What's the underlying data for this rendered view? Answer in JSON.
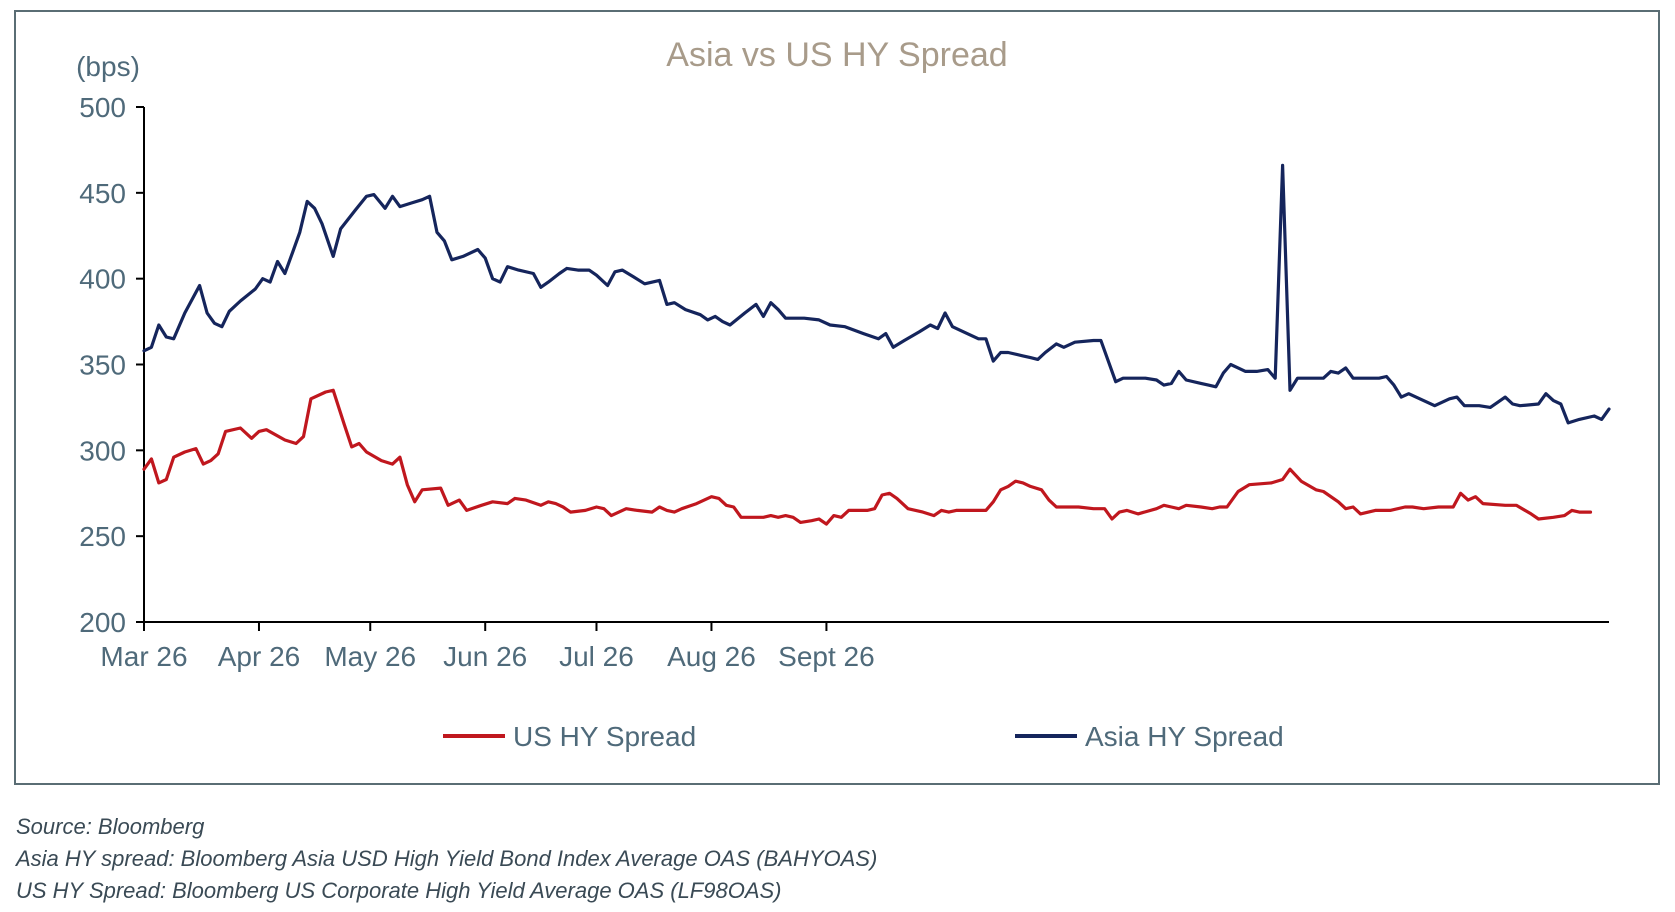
{
  "chart_data": {
    "type": "line",
    "title": "Asia vs US HY Spread",
    "ylabel": "(bps)",
    "ylim": [
      200,
      500
    ],
    "yticks": [
      "200",
      "250",
      "300",
      "350",
      "400",
      "450",
      "500"
    ],
    "xticks": [
      "Mar 26",
      "Apr 26",
      "May 26",
      "Jun 26",
      "Jul 26",
      "Aug 26",
      "Sept 26"
    ],
    "legend_position": "bottom",
    "grid": false,
    "colors": {
      "us": "#c0171e",
      "asia": "#15255c",
      "title": "#a89b8a",
      "axis": "#4f6a7a"
    },
    "series": [
      {
        "name": "US HY Spread",
        "key": "us",
        "points": [
          [
            0,
            289
          ],
          [
            2,
            295
          ],
          [
            4,
            281
          ],
          [
            6,
            283
          ],
          [
            8,
            296
          ],
          [
            11,
            299
          ],
          [
            14,
            301
          ],
          [
            16,
            292
          ],
          [
            18,
            294
          ],
          [
            20,
            298
          ],
          [
            22,
            311
          ],
          [
            26,
            313
          ],
          [
            29,
            307
          ],
          [
            31,
            311
          ],
          [
            33,
            312
          ],
          [
            38,
            306
          ],
          [
            41,
            304
          ],
          [
            43,
            308
          ],
          [
            45,
            330
          ],
          [
            49,
            334
          ],
          [
            51,
            335
          ],
          [
            54,
            315
          ],
          [
            56,
            302
          ],
          [
            58,
            304
          ],
          [
            60,
            299
          ],
          [
            64,
            294
          ],
          [
            67,
            292
          ],
          [
            69,
            296
          ],
          [
            71,
            280
          ],
          [
            73,
            270
          ],
          [
            75,
            277
          ],
          [
            80,
            278
          ],
          [
            82,
            268
          ],
          [
            85,
            271
          ],
          [
            87,
            265
          ],
          [
            91,
            268
          ],
          [
            94,
            270
          ],
          [
            98,
            269
          ],
          [
            100,
            272
          ],
          [
            103,
            271
          ],
          [
            107,
            268
          ],
          [
            109,
            270
          ],
          [
            111,
            269
          ],
          [
            113,
            267
          ],
          [
            115,
            264
          ],
          [
            119,
            265
          ],
          [
            122,
            267
          ],
          [
            124,
            266
          ],
          [
            126,
            262
          ],
          [
            130,
            266
          ],
          [
            133,
            265
          ],
          [
            137,
            264
          ],
          [
            139,
            267
          ],
          [
            141,
            265
          ],
          [
            143,
            264
          ],
          [
            145,
            266
          ],
          [
            149,
            269
          ],
          [
            153,
            273
          ],
          [
            155,
            272
          ],
          [
            157,
            268
          ],
          [
            159,
            267
          ],
          [
            161,
            261
          ],
          [
            167,
            261
          ],
          [
            169,
            262
          ],
          [
            171,
            261
          ],
          [
            173,
            262
          ],
          [
            175,
            261
          ],
          [
            177,
            258
          ],
          [
            180,
            259
          ],
          [
            182,
            260
          ],
          [
            184,
            257
          ],
          [
            186,
            262
          ],
          [
            188,
            261
          ],
          [
            190,
            265
          ],
          [
            195,
            265
          ],
          [
            197,
            266
          ],
          [
            199,
            274
          ],
          [
            201,
            275
          ],
          [
            203,
            272
          ],
          [
            206,
            266
          ],
          [
            210,
            264
          ],
          [
            213,
            262
          ],
          [
            215,
            265
          ],
          [
            217,
            264
          ],
          [
            219,
            265
          ],
          [
            224,
            265
          ],
          [
            227,
            265
          ],
          [
            229,
            270
          ],
          [
            231,
            277
          ],
          [
            233,
            279
          ],
          [
            235,
            282
          ],
          [
            237,
            281
          ],
          [
            239,
            279
          ],
          [
            242,
            277
          ],
          [
            244,
            271
          ],
          [
            246,
            267
          ],
          [
            252,
            267
          ],
          [
            256,
            266
          ],
          [
            259,
            266
          ],
          [
            261,
            260
          ],
          [
            263,
            264
          ],
          [
            265,
            265
          ],
          [
            268,
            263
          ],
          [
            273,
            266
          ],
          [
            275,
            268
          ],
          [
            277,
            267
          ],
          [
            279,
            266
          ],
          [
            281,
            268
          ],
          [
            285,
            267
          ],
          [
            288,
            266
          ],
          [
            290,
            267
          ],
          [
            292,
            267
          ],
          [
            295,
            276
          ],
          [
            298,
            280
          ],
          [
            304,
            281
          ],
          [
            307,
            283
          ],
          [
            309,
            289
          ],
          [
            312,
            282
          ],
          [
            316,
            277
          ],
          [
            318,
            276
          ],
          [
            322,
            270
          ],
          [
            324,
            266
          ],
          [
            326,
            267
          ],
          [
            328,
            263
          ],
          [
            332,
            265
          ],
          [
            336,
            265
          ],
          [
            340,
            267
          ],
          [
            342,
            267
          ],
          [
            345,
            266
          ],
          [
            349,
            267
          ],
          [
            353,
            267
          ],
          [
            355,
            275
          ],
          [
            357,
            271
          ],
          [
            359,
            273
          ],
          [
            361,
            269
          ],
          [
            367,
            268
          ],
          [
            370,
            268
          ],
          [
            374,
            263
          ],
          [
            376,
            260
          ],
          [
            380,
            261
          ],
          [
            383,
            262
          ],
          [
            385,
            265
          ],
          [
            387,
            264
          ],
          [
            390,
            264
          ]
        ]
      },
      {
        "name": "Asia HY Spread",
        "key": "asia",
        "points": [
          [
            0,
            358
          ],
          [
            2,
            360
          ],
          [
            4,
            373
          ],
          [
            6,
            366
          ],
          [
            8,
            365
          ],
          [
            11,
            380
          ],
          [
            15,
            396
          ],
          [
            17,
            380
          ],
          [
            19,
            374
          ],
          [
            21,
            372
          ],
          [
            23,
            381
          ],
          [
            26,
            387
          ],
          [
            30,
            394
          ],
          [
            32,
            400
          ],
          [
            34,
            398
          ],
          [
            36,
            410
          ],
          [
            38,
            403
          ],
          [
            40,
            415
          ],
          [
            42,
            427
          ],
          [
            44,
            445
          ],
          [
            46,
            441
          ],
          [
            48,
            432
          ],
          [
            51,
            413
          ],
          [
            53,
            429
          ],
          [
            57,
            440
          ],
          [
            60,
            448
          ],
          [
            62,
            449
          ],
          [
            65,
            441
          ],
          [
            67,
            448
          ],
          [
            69,
            442
          ],
          [
            72,
            444
          ],
          [
            75,
            446
          ],
          [
            77,
            448
          ],
          [
            79,
            427
          ],
          [
            81,
            422
          ],
          [
            83,
            411
          ],
          [
            86,
            413
          ],
          [
            90,
            417
          ],
          [
            92,
            412
          ],
          [
            94,
            400
          ],
          [
            96,
            398
          ],
          [
            98,
            407
          ],
          [
            101,
            405
          ],
          [
            105,
            403
          ],
          [
            107,
            395
          ],
          [
            109,
            398
          ],
          [
            112,
            403
          ],
          [
            114,
            406
          ],
          [
            117,
            405
          ],
          [
            120,
            405
          ],
          [
            122,
            402
          ],
          [
            125,
            396
          ],
          [
            127,
            404
          ],
          [
            129,
            405
          ],
          [
            132,
            401
          ],
          [
            135,
            397
          ],
          [
            139,
            399
          ],
          [
            141,
            385
          ],
          [
            143,
            386
          ],
          [
            146,
            382
          ],
          [
            150,
            379
          ],
          [
            152,
            376
          ],
          [
            154,
            378
          ],
          [
            156,
            375
          ],
          [
            158,
            373
          ],
          [
            162,
            380
          ],
          [
            165,
            385
          ],
          [
            167,
            378
          ],
          [
            169,
            386
          ],
          [
            171,
            382
          ],
          [
            173,
            377
          ],
          [
            178,
            377
          ],
          [
            182,
            376
          ],
          [
            185,
            373
          ],
          [
            189,
            372
          ],
          [
            194,
            368
          ],
          [
            198,
            365
          ],
          [
            200,
            368
          ],
          [
            202,
            360
          ],
          [
            205,
            364
          ],
          [
            209,
            369
          ],
          [
            212,
            373
          ],
          [
            214,
            371
          ],
          [
            216,
            380
          ],
          [
            218,
            372
          ],
          [
            221,
            369
          ],
          [
            225,
            365
          ],
          [
            227,
            365
          ],
          [
            229,
            352
          ],
          [
            231,
            357
          ],
          [
            233,
            357
          ],
          [
            237,
            355
          ],
          [
            239,
            354
          ],
          [
            241,
            353
          ],
          [
            243,
            357
          ],
          [
            246,
            362
          ],
          [
            248,
            360
          ],
          [
            251,
            363
          ],
          [
            256,
            364
          ],
          [
            258,
            364
          ],
          [
            262,
            340
          ],
          [
            264,
            342
          ],
          [
            267,
            342
          ],
          [
            270,
            342
          ],
          [
            273,
            341
          ],
          [
            275,
            338
          ],
          [
            277,
            339
          ],
          [
            279,
            346
          ],
          [
            281,
            341
          ],
          [
            285,
            339
          ],
          [
            287,
            338
          ],
          [
            289,
            337
          ],
          [
            291,
            345
          ],
          [
            293,
            350
          ],
          [
            295,
            348
          ],
          [
            297,
            346
          ],
          [
            300,
            346
          ],
          [
            303,
            347
          ],
          [
            305,
            342
          ],
          [
            307,
            466
          ],
          [
            309,
            335
          ],
          [
            311,
            342
          ],
          [
            315,
            342
          ],
          [
            318,
            342
          ],
          [
            320,
            346
          ],
          [
            322,
            345
          ],
          [
            324,
            348
          ],
          [
            326,
            342
          ],
          [
            330,
            342
          ],
          [
            333,
            342
          ],
          [
            335,
            343
          ],
          [
            337,
            338
          ],
          [
            339,
            331
          ],
          [
            341,
            333
          ],
          [
            344,
            330
          ],
          [
            348,
            326
          ],
          [
            352,
            330
          ],
          [
            354,
            331
          ],
          [
            356,
            326
          ],
          [
            360,
            326
          ],
          [
            363,
            325
          ],
          [
            365,
            328
          ],
          [
            367,
            331
          ],
          [
            369,
            327
          ],
          [
            371,
            326
          ],
          [
            376,
            327
          ],
          [
            378,
            333
          ],
          [
            380,
            329
          ],
          [
            382,
            327
          ],
          [
            384,
            316
          ],
          [
            387,
            318
          ],
          [
            391,
            320
          ],
          [
            393,
            318
          ],
          [
            395,
            324
          ]
        ]
      }
    ],
    "x_domain_note": "x values are calendar days counted from Mar 26"
  },
  "notes": {
    "source": "Source: Bloomberg",
    "asia_def": "Asia HY spread: Bloomberg Asia USD High Yield Bond Index Average OAS (BAHYOAS)",
    "us_def": "US HY Spread: Bloomberg US Corporate High Yield Average OAS (LF98OAS)"
  }
}
